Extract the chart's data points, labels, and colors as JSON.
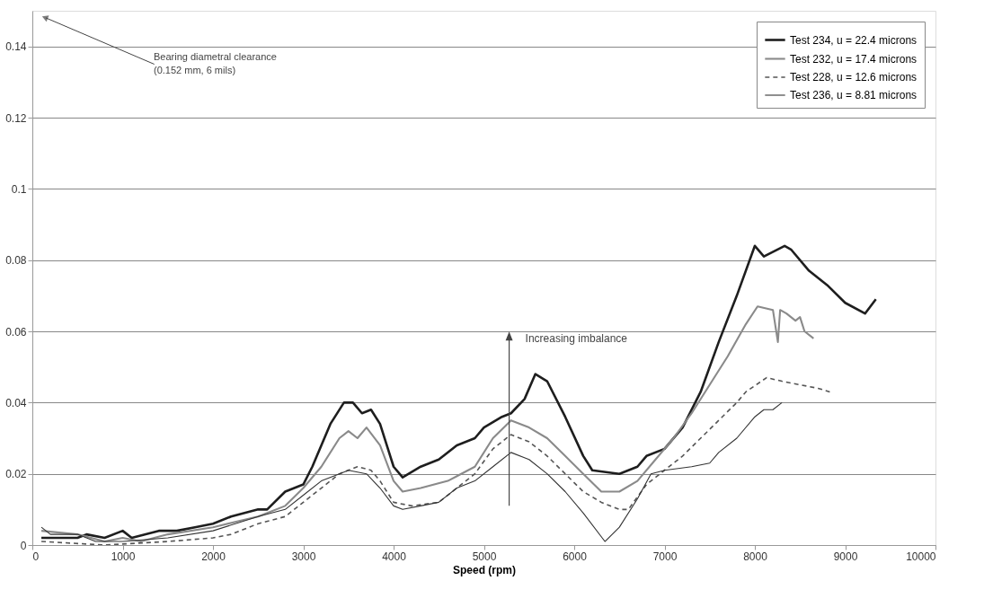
{
  "chart_data": {
    "type": "line",
    "xlabel": "Speed (rpm)",
    "xlim": [
      0,
      10000
    ],
    "xticks": [
      0,
      1000,
      2000,
      3000,
      4000,
      5000,
      6000,
      7000,
      8000,
      9000,
      10000
    ],
    "ylim": [
      0,
      0.15
    ],
    "yticks": [
      0,
      0.02,
      0.04,
      0.06,
      0.08,
      0.1,
      0.12,
      0.14
    ],
    "grid": "y",
    "legend": "top right",
    "series": [
      {
        "name": "Test 234, u = 22.4 microns",
        "color": "#1e1e1e",
        "line_style": "solid",
        "x": [
          100,
          500,
          600,
          800,
          1000,
          1100,
          1400,
          1600,
          1800,
          2000,
          2200,
          2500,
          2600,
          2800,
          3000,
          3100,
          3300,
          3450,
          3550,
          3650,
          3750,
          3850,
          4000,
          4100,
          4300,
          4500,
          4700,
          4900,
          5000,
          5200,
          5300,
          5450,
          5570,
          5700,
          5900,
          6100,
          6200,
          6500,
          6700,
          6800,
          7000,
          7200,
          7400,
          7600,
          7800,
          8000,
          8100,
          8330,
          8400,
          8600,
          8800,
          9000,
          9220,
          9340
        ],
        "values": [
          0.002,
          0.002,
          0.003,
          0.002,
          0.004,
          0.002,
          0.004,
          0.004,
          0.005,
          0.006,
          0.008,
          0.01,
          0.01,
          0.015,
          0.017,
          0.022,
          0.034,
          0.04,
          0.04,
          0.037,
          0.038,
          0.034,
          0.022,
          0.019,
          0.022,
          0.024,
          0.028,
          0.03,
          0.033,
          0.036,
          0.037,
          0.041,
          0.048,
          0.046,
          0.036,
          0.025,
          0.021,
          0.02,
          0.022,
          0.025,
          0.027,
          0.033,
          0.043,
          0.057,
          0.07,
          0.084,
          0.081,
          0.084,
          0.083,
          0.077,
          0.073,
          0.068,
          0.065,
          0.069
        ]
      },
      {
        "name": "Test 232, u = 17.4 microns",
        "color": "#8a8a8a",
        "line_style": "solid",
        "x": [
          100,
          500,
          800,
          1000,
          1200,
          1500,
          2000,
          2500,
          2800,
          3000,
          3200,
          3400,
          3500,
          3600,
          3700,
          3850,
          4000,
          4100,
          4300,
          4600,
          4900,
          5100,
          5300,
          5500,
          5700,
          5900,
          6100,
          6300,
          6500,
          6700,
          6900,
          7100,
          7300,
          7500,
          7700,
          7900,
          8030,
          8200,
          8255,
          8280,
          8350,
          8450,
          8500,
          8550,
          8650
        ],
        "values": [
          0.004,
          0.003,
          0.001,
          0.002,
          0.001,
          0.003,
          0.005,
          0.008,
          0.011,
          0.016,
          0.022,
          0.03,
          0.032,
          0.03,
          0.033,
          0.028,
          0.018,
          0.015,
          0.016,
          0.018,
          0.022,
          0.03,
          0.035,
          0.033,
          0.03,
          0.025,
          0.02,
          0.015,
          0.015,
          0.018,
          0.024,
          0.03,
          0.037,
          0.045,
          0.053,
          0.062,
          0.067,
          0.066,
          0.057,
          0.066,
          0.065,
          0.063,
          0.064,
          0.06,
          0.058
        ]
      },
      {
        "name": "Test 228, u = 12.6 microns",
        "color": "#555555",
        "line_style": "dashed",
        "x": [
          100,
          800,
          1500,
          2000,
          2200,
          2500,
          2800,
          3000,
          3200,
          3400,
          3600,
          3750,
          3850,
          4000,
          4200,
          4500,
          4700,
          4900,
          5100,
          5300,
          5500,
          5700,
          5900,
          6100,
          6300,
          6500,
          6600,
          6800,
          7000,
          7200,
          7400,
          7600,
          7800,
          7900,
          8130,
          8300,
          8500,
          8700,
          8830
        ],
        "values": [
          0.001,
          0.0,
          0.001,
          0.002,
          0.003,
          0.006,
          0.008,
          0.012,
          0.016,
          0.02,
          0.022,
          0.021,
          0.018,
          0.012,
          0.011,
          0.012,
          0.016,
          0.02,
          0.027,
          0.031,
          0.029,
          0.025,
          0.02,
          0.015,
          0.012,
          0.01,
          0.01,
          0.017,
          0.021,
          0.025,
          0.03,
          0.035,
          0.04,
          0.043,
          0.047,
          0.046,
          0.045,
          0.044,
          0.043
        ]
      },
      {
        "name": "Test 236, u = 8.81 microns",
        "color": "#333333",
        "line_style": "solid",
        "x": [
          100,
          200,
          500,
          700,
          1000,
          1500,
          2000,
          2500,
          2800,
          3000,
          3200,
          3400,
          3500,
          3700,
          3850,
          4000,
          4100,
          4300,
          4500,
          4700,
          4900,
          5100,
          5300,
          5500,
          5700,
          5900,
          6100,
          6340,
          6500,
          6700,
          6850,
          7000,
          7300,
          7500,
          7600,
          7800,
          8000,
          8100,
          8200,
          8300
        ],
        "values": [
          0.005,
          0.003,
          0.003,
          0.001,
          0.001,
          0.002,
          0.004,
          0.008,
          0.01,
          0.014,
          0.018,
          0.02,
          0.021,
          0.02,
          0.016,
          0.011,
          0.01,
          0.011,
          0.012,
          0.016,
          0.018,
          0.022,
          0.026,
          0.024,
          0.02,
          0.015,
          0.009,
          0.001,
          0.005,
          0.013,
          0.02,
          0.021,
          0.022,
          0.023,
          0.026,
          0.03,
          0.036,
          0.038,
          0.038,
          0.04
        ]
      }
    ],
    "annotations": [
      "Bearing diametral clearance\n(0.152 mm, 6 mils)",
      "Increasing imbalance"
    ]
  }
}
